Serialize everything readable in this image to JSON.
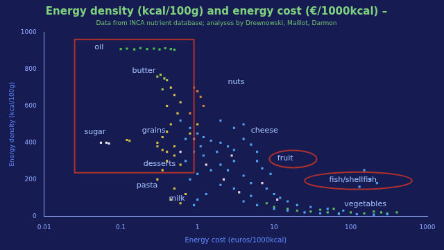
{
  "chart_data": {
    "type": "scatter",
    "title": "Energy density (kcal/100g) and energy cost (€/1000kcal) –",
    "subtitle": "Data from INCA nutrient database; analyses by Drewnowski, Maillot, Darmon",
    "x_label": "Energy cost (euros/1000kcal)",
    "y_label": "Energy density (kcal/100g)",
    "log": "x",
    "grid": false,
    "marker": "square",
    "xlim": [
      0.01,
      1000
    ],
    "xticks": [
      0.01,
      0.1,
      1,
      10,
      100,
      1000
    ],
    "ylim": [
      0,
      1000
    ],
    "yticks": [
      0,
      200,
      400,
      600,
      800,
      1000
    ],
    "series": [
      {
        "color": "#4fc04f",
        "points": [
          [
            0.1,
            910
          ],
          [
            0.12,
            912
          ],
          [
            0.15,
            908
          ],
          [
            0.18,
            915
          ],
          [
            0.22,
            910
          ],
          [
            0.27,
            912
          ],
          [
            0.32,
            908
          ],
          [
            0.38,
            914
          ],
          [
            0.45,
            910
          ],
          [
            0.5,
            906
          ]
        ]
      },
      {
        "color": "#a8c850",
        "points": [
          [
            0.3,
            760
          ],
          [
            0.33,
            770
          ],
          [
            0.37,
            750
          ],
          [
            0.4,
            740
          ],
          [
            0.35,
            690
          ]
        ]
      },
      {
        "color": "#f0f0f0",
        "points": [
          [
            0.055,
            400
          ],
          [
            0.065,
            400
          ],
          [
            0.07,
            395
          ]
        ]
      },
      {
        "color": "#d8b840",
        "points": [
          [
            0.12,
            415
          ],
          [
            0.13,
            410
          ],
          [
            0.3,
            380
          ],
          [
            0.35,
            360
          ],
          [
            0.4,
            350
          ]
        ]
      },
      {
        "color": "#4fa3f7",
        "points": [
          [
            0.6,
            520
          ],
          [
            0.8,
            480
          ],
          [
            1,
            450
          ],
          [
            1.2,
            430
          ],
          [
            1.5,
            410
          ],
          [
            2,
            400
          ],
          [
            2.5,
            380
          ],
          [
            3,
            360
          ],
          [
            4,
            420
          ],
          [
            5,
            390
          ],
          [
            6,
            350
          ],
          [
            3,
            300
          ],
          [
            2,
            280
          ],
          [
            1.5,
            250
          ],
          [
            1,
            230
          ],
          [
            0.8,
            200
          ],
          [
            0.7,
            300
          ],
          [
            1.2,
            330
          ],
          [
            2.5,
            250
          ],
          [
            4,
            220
          ],
          [
            5,
            180
          ],
          [
            8,
            150
          ],
          [
            10,
            120
          ],
          [
            12,
            100
          ],
          [
            15,
            80
          ],
          [
            20,
            60
          ],
          [
            30,
            50
          ],
          [
            50,
            40
          ],
          [
            80,
            30
          ],
          [
            6,
            300
          ],
          [
            7,
            260
          ],
          [
            9,
            230
          ],
          [
            3,
            480
          ],
          [
            4,
            500
          ],
          [
            2,
            520
          ],
          [
            1.8,
            350
          ],
          [
            1.1,
            380
          ],
          [
            0.9,
            350
          ],
          [
            0.7,
            420
          ],
          [
            5,
            110
          ],
          [
            3,
            150
          ],
          [
            2,
            170
          ],
          [
            1.3,
            120
          ],
          [
            1,
            90
          ],
          [
            0.9,
            60
          ],
          [
            4,
            80
          ],
          [
            6,
            60
          ],
          [
            10,
            40
          ],
          [
            15,
            30
          ],
          [
            25,
            20
          ],
          [
            40,
            15
          ],
          [
            70,
            12
          ],
          [
            120,
            10
          ],
          [
            200,
            8
          ],
          [
            300,
            10
          ],
          [
            180,
            200
          ],
          [
            220,
            180
          ],
          [
            150,
            250
          ],
          [
            130,
            160
          ]
        ]
      },
      {
        "color": "#d9c441",
        "points": [
          [
            0.3,
            400
          ],
          [
            0.35,
            430
          ],
          [
            0.4,
            460
          ],
          [
            0.45,
            500
          ],
          [
            0.5,
            380
          ],
          [
            0.4,
            300
          ],
          [
            0.5,
            330
          ],
          [
            0.6,
            280
          ],
          [
            0.35,
            250
          ],
          [
            0.3,
            200
          ],
          [
            0.5,
            150
          ],
          [
            0.7,
            120
          ],
          [
            0.45,
            90
          ],
          [
            0.6,
            70
          ],
          [
            0.8,
            450
          ],
          [
            1,
            500
          ],
          [
            0.55,
            560
          ],
          [
            0.6,
            620
          ],
          [
            0.45,
            700
          ],
          [
            0.5,
            660
          ],
          [
            0.4,
            600
          ]
        ]
      },
      {
        "color": "#5cb85c",
        "points": [
          [
            20,
            30
          ],
          [
            30,
            25
          ],
          [
            50,
            20
          ],
          [
            70,
            15
          ],
          [
            100,
            20
          ],
          [
            150,
            15
          ],
          [
            200,
            25
          ],
          [
            250,
            20
          ],
          [
            300,
            15
          ],
          [
            15,
            40
          ],
          [
            10,
            50
          ],
          [
            40,
            35
          ],
          [
            400,
            20
          ],
          [
            60,
            40
          ],
          [
            8,
            70
          ]
        ]
      },
      {
        "color": "#e08040",
        "points": [
          [
            0.9,
            700
          ],
          [
            1,
            680
          ],
          [
            1.1,
            650
          ],
          [
            1.2,
            600
          ],
          [
            0.8,
            560
          ]
        ]
      },
      {
        "color": "#f0d0e0",
        "points": [
          [
            0.6,
            350
          ],
          [
            0.9,
            420
          ],
          [
            1.3,
            280
          ],
          [
            2.2,
            200
          ],
          [
            3.5,
            130
          ],
          [
            2.8,
            330
          ],
          [
            7,
            180
          ],
          [
            11,
            90
          ]
        ]
      }
    ],
    "annotations": [
      {
        "text": "oil",
        "x": 0.052,
        "y": 920
      },
      {
        "text": "butter",
        "x": 0.2,
        "y": 792
      },
      {
        "text": "nuts",
        "x": 3.2,
        "y": 731
      },
      {
        "text": "sugar",
        "x": 0.046,
        "y": 458
      },
      {
        "text": "grains",
        "x": 0.27,
        "y": 467
      },
      {
        "text": "cheese",
        "x": 7.5,
        "y": 467
      },
      {
        "text": "desserts",
        "x": 0.32,
        "y": 283
      },
      {
        "text": "fruit",
        "x": 14,
        "y": 316
      },
      {
        "text": "fish/shellfish",
        "x": 107,
        "y": 198
      },
      {
        "text": "pasta",
        "x": 0.22,
        "y": 165
      },
      {
        "text": "milk",
        "x": 0.54,
        "y": 94
      },
      {
        "text": "vegetables",
        "x": 155,
        "y": 66
      }
    ],
    "highlights": [
      {
        "shape": "box",
        "x": [
          0.025,
          0.9
        ],
        "y": [
          236,
          962
        ]
      },
      {
        "shape": "ellipse",
        "x": [
          8.7,
          36
        ],
        "y": [
          264,
          358
        ]
      },
      {
        "shape": "ellipse",
        "x": [
          25,
          630
        ],
        "y": [
          146,
          240
        ]
      }
    ]
  }
}
